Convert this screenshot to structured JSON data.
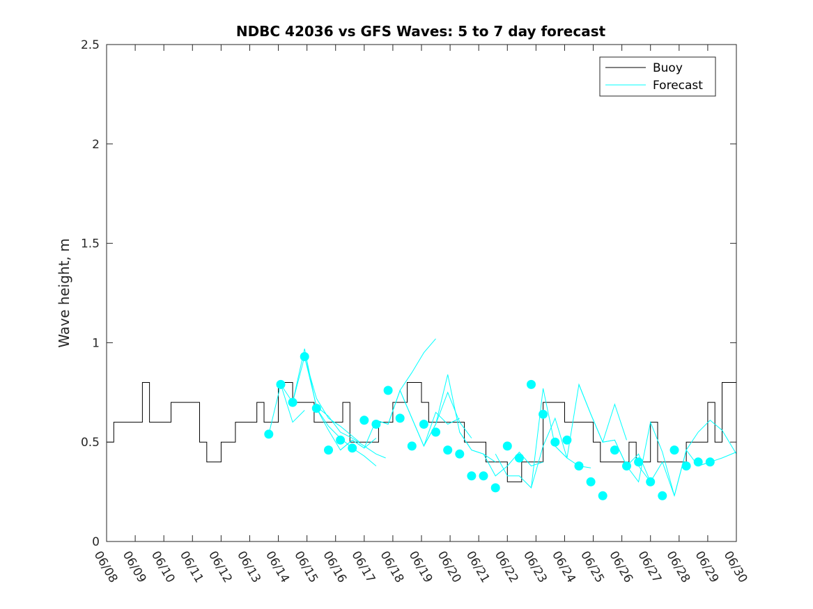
{
  "chart_data": {
    "type": "line",
    "title": "NDBC 42036 vs GFS Waves: 5 to 7 day forecast",
    "xlabel": "",
    "ylabel": "Wave height, m",
    "ylim": [
      0,
      2.5
    ],
    "xlim": [
      "06/08",
      "06/30"
    ],
    "yticks": [
      "0",
      "0.5",
      "1",
      "1.5",
      "2",
      "2.5"
    ],
    "xticks": [
      "06/08",
      "06/09",
      "06/10",
      "06/11",
      "06/12",
      "06/13",
      "06/14",
      "06/15",
      "06/16",
      "06/17",
      "06/18",
      "06/19",
      "06/20",
      "06/21",
      "06/22",
      "06/23",
      "06/24",
      "06/25",
      "06/26",
      "06/27",
      "06/28",
      "06/29",
      "06/30"
    ],
    "grid": false,
    "legend_position": "top-right",
    "colors": {
      "buoy": "#000000",
      "forecast": "#00ffff"
    },
    "series": [
      {
        "name": "Buoy",
        "x": [
          "06/08",
          "06/08 06:00",
          "06/08 12:00",
          "06/09",
          "06/09 06:00",
          "06/09 12:00",
          "06/10",
          "06/10 06:00",
          "06/10 12:00",
          "06/11",
          "06/11 06:00",
          "06/11 12:00",
          "06/12",
          "06/12 06:00",
          "06/12 12:00",
          "06/13",
          "06/13 06:00",
          "06/13 12:00",
          "06/14",
          "06/14 06:00",
          "06/14 12:00",
          "06/15",
          "06/15 06:00",
          "06/15 12:00",
          "06/16",
          "06/16 06:00",
          "06/16 12:00",
          "06/17",
          "06/17 06:00",
          "06/17 12:00",
          "06/18",
          "06/18 06:00",
          "06/18 12:00",
          "06/19",
          "06/19 06:00",
          "06/19 12:00",
          "06/20",
          "06/20 06:00",
          "06/20 12:00",
          "06/21",
          "06/21 06:00",
          "06/21 12:00",
          "06/22",
          "06/22 06:00",
          "06/22 12:00",
          "06/23",
          "06/23 06:00",
          "06/23 12:00",
          "06/24",
          "06/24 06:00",
          "06/24 12:00",
          "06/25",
          "06/25 06:00",
          "06/25 12:00",
          "06/26",
          "06/26 06:00",
          "06/26 12:00",
          "06/27",
          "06/27 06:00",
          "06/27 12:00",
          "06/28",
          "06/28 06:00",
          "06/28 12:00",
          "06/29",
          "06/29 06:00",
          "06/29 12:00",
          "06/30"
        ],
        "y": [
          0.5,
          0.6,
          0.6,
          0.6,
          0.8,
          0.6,
          0.6,
          0.7,
          0.7,
          0.7,
          0.5,
          0.4,
          0.5,
          0.5,
          0.6,
          0.6,
          0.7,
          0.6,
          0.8,
          0.8,
          0.7,
          0.7,
          0.6,
          0.6,
          0.6,
          0.7,
          0.5,
          0.5,
          0.5,
          0.6,
          0.7,
          0.7,
          0.8,
          0.7,
          0.6,
          0.6,
          0.6,
          0.6,
          0.5,
          0.5,
          0.4,
          0.4,
          0.3,
          0.3,
          0.4,
          0.4,
          0.7,
          0.7,
          0.6,
          0.6,
          0.6,
          0.5,
          0.4,
          0.4,
          0.4,
          0.5,
          0.4,
          0.6,
          0.4,
          0.4,
          0.4,
          0.5,
          0.5,
          0.7,
          0.5,
          0.8,
          0.5
        ]
      },
      {
        "name": "Forecast",
        "runs": [
          {
            "x": [
              "06/13 16:00",
              "06/14 02:00",
              "06/14 12:00",
              "06/14 22:00"
            ],
            "y": [
              0.54,
              0.79,
              0.6,
              0.66
            ]
          },
          {
            "x": [
              "06/14 02:00",
              "06/14 12:00",
              "06/14 22:00",
              "06/15 08:00",
              "06/15 18:00",
              "06/16 04:00",
              "06/16 14:00",
              "06/16 20:00"
            ],
            "y": [
              0.79,
              0.7,
              0.93,
              0.72,
              0.62,
              0.58,
              0.53,
              0.5
            ]
          },
          {
            "x": [
              "06/14 12:00",
              "06/14 22:00",
              "06/15 08:00",
              "06/15 18:00",
              "06/16 04:00",
              "06/16 14:00",
              "06/17 00:00",
              "06/17 10:00"
            ],
            "y": [
              0.7,
              0.97,
              0.67,
              0.58,
              0.52,
              0.47,
              0.43,
              0.38
            ]
          },
          {
            "x": [
              "06/14 22:00",
              "06/15 08:00",
              "06/15 18:00",
              "06/16 04:00",
              "06/16 14:00",
              "06/17 00:00",
              "06/17 10:00",
              "06/17 18:00"
            ],
            "y": [
              0.93,
              0.68,
              0.63,
              0.55,
              0.52,
              0.48,
              0.44,
              0.42
            ]
          },
          {
            "x": [
              "06/15 08:00",
              "06/15 18:00",
              "06/16 04:00",
              "06/16 14:00",
              "06/17 00:00",
              "06/17 10:00"
            ],
            "y": [
              0.67,
              0.56,
              0.46,
              0.51,
              0.47,
              0.52
            ]
          },
          {
            "x": [
              "06/16 04:00",
              "06/16 14:00",
              "06/17 00:00",
              "06/17 10:00",
              "06/17 20:00",
              "06/18 06:00",
              "06/18 16:00",
              "06/19 02:00",
              "06/19 12:00"
            ],
            "y": [
              0.46,
              0.51,
              0.47,
              0.61,
              0.59,
              0.76,
              0.85,
              0.95,
              1.02
            ]
          },
          {
            "x": [
              "06/17 10:00",
              "06/17 20:00",
              "06/18 06:00",
              "06/18 16:00",
              "06/19 02:00",
              "06/19 12:00",
              "06/19 22:00",
              "06/20 08:00"
            ],
            "y": [
              0.61,
              0.59,
              0.76,
              0.62,
              0.48,
              0.65,
              0.59,
              0.62
            ]
          },
          {
            "x": [
              "06/18 06:00",
              "06/18 16:00",
              "06/19 02:00",
              "06/19 12:00",
              "06/19 22:00",
              "06/20 08:00",
              "06/20 18:00"
            ],
            "y": [
              0.76,
              0.62,
              0.48,
              0.59,
              0.75,
              0.6,
              0.52
            ]
          },
          {
            "x": [
              "06/19 02:00",
              "06/19 12:00",
              "06/19 22:00",
              "06/20 08:00",
              "06/20 18:00",
              "06/21 04:00",
              "06/21 14:00"
            ],
            "y": [
              0.48,
              0.59,
              0.84,
              0.55,
              0.46,
              0.44,
              0.4
            ]
          },
          {
            "x": [
              "06/20 08:00",
              "06/20 18:00",
              "06/21 04:00",
              "06/21 14:00",
              "06/22 00:00",
              "06/22 10:00",
              "06/22 20:00",
              "06/23 06:00"
            ],
            "y": [
              0.55,
              0.46,
              0.44,
              0.33,
              0.38,
              0.45,
              0.38,
              0.4
            ]
          },
          {
            "x": [
              "06/21 14:00",
              "06/22 00:00",
              "06/22 10:00",
              "06/22 20:00",
              "06/23 06:00",
              "06/23 16:00",
              "06/24 02:00"
            ],
            "y": [
              0.44,
              0.33,
              0.33,
              0.27,
              0.77,
              0.48,
              0.42
            ]
          },
          {
            "x": [
              "06/22 20:00",
              "06/23 06:00",
              "06/23 16:00",
              "06/24 02:00",
              "06/24 12:00",
              "06/24 22:00"
            ],
            "y": [
              0.27,
              0.48,
              0.62,
              0.42,
              0.38,
              0.37
            ]
          },
          {
            "x": [
              "06/23 16:00",
              "06/24 02:00",
              "06/24 12:00",
              "06/24 22:00",
              "06/25 08:00",
              "06/25 18:00",
              "06/26 04:00"
            ],
            "y": [
              0.48,
              0.42,
              0.79,
              0.64,
              0.5,
              0.69,
              0.51
            ]
          },
          {
            "x": [
              "06/24 12:00",
              "06/24 22:00",
              "06/25 08:00",
              "06/25 18:00",
              "06/26 04:00",
              "06/26 14:00",
              "06/27 00:00"
            ],
            "y": [
              0.79,
              0.64,
              0.5,
              0.51,
              0.38,
              0.44,
              0.3
            ]
          },
          {
            "x": [
              "06/25 08:00",
              "06/25 18:00",
              "06/26 04:00",
              "06/26 14:00",
              "06/27 00:00",
              "06/27 10:00",
              "06/27 20:00"
            ],
            "y": [
              0.5,
              0.51,
              0.38,
              0.3,
              0.6,
              0.45,
              0.23
            ]
          },
          {
            "x": [
              "06/26 14:00",
              "06/27 00:00",
              "06/27 10:00",
              "06/27 20:00",
              "06/28 06:00",
              "06/28 16:00",
              "06/29 02:00"
            ],
            "y": [
              0.38,
              0.3,
              0.4,
              0.23,
              0.46,
              0.38,
              0.4
            ]
          },
          {
            "x": [
              "06/27 20:00",
              "06/28 06:00",
              "06/28 16:00",
              "06/29 02:00",
              "06/29 12:00",
              "06/30"
            ],
            "y": [
              0.23,
              0.46,
              0.55,
              0.61,
              0.56,
              0.44
            ]
          },
          {
            "x": [
              "06/28 16:00",
              "06/29 02:00",
              "06/29 12:00",
              "06/30"
            ],
            "y": [
              0.38,
              0.4,
              0.42,
              0.45
            ]
          }
        ],
        "markers": {
          "x": [
            "06/13 16:00",
            "06/14 02:00",
            "06/14 12:00",
            "06/14 22:00",
            "06/15 08:00",
            "06/15 18:00",
            "06/16 04:00",
            "06/16 14:00",
            "06/17 00:00",
            "06/17 10:00",
            "06/17 20:00",
            "06/18 06:00",
            "06/18 16:00",
            "06/19 02:00",
            "06/19 12:00",
            "06/19 22:00",
            "06/20 08:00",
            "06/20 18:00",
            "06/21 04:00",
            "06/21 14:00",
            "06/22 00:00",
            "06/22 10:00",
            "06/22 20:00",
            "06/23 06:00",
            "06/23 16:00",
            "06/24 02:00",
            "06/24 12:00",
            "06/24 22:00",
            "06/25 08:00",
            "06/25 18:00",
            "06/26 04:00",
            "06/26 14:00",
            "06/27 00:00",
            "06/27 10:00",
            "06/27 20:00",
            "06/28 06:00",
            "06/28 16:00",
            "06/29 02:00"
          ],
          "y": [
            0.54,
            0.79,
            0.7,
            0.93,
            0.67,
            0.46,
            0.51,
            0.47,
            0.61,
            0.59,
            0.76,
            0.62,
            0.48,
            0.59,
            0.55,
            0.46,
            0.44,
            0.33,
            0.33,
            0.27,
            0.48,
            0.42,
            0.79,
            0.64,
            0.5,
            0.51,
            0.38,
            0.3,
            0.23,
            0.46,
            0.38,
            0.4,
            0.3,
            0.23,
            0.46,
            0.38,
            0.4,
            0.4
          ]
        }
      }
    ],
    "legend": [
      "Buoy",
      "Forecast"
    ]
  }
}
